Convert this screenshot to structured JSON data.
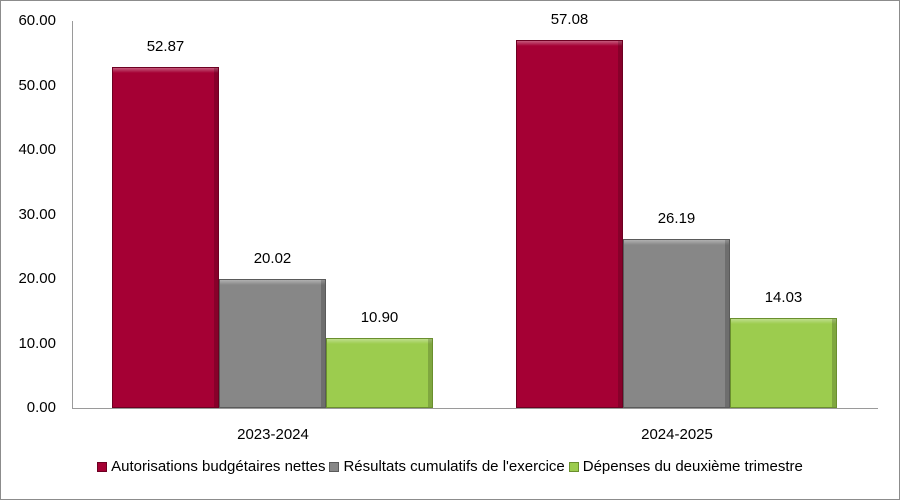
{
  "chart_data": {
    "type": "bar",
    "title": "",
    "xlabel": "",
    "ylabel": "",
    "ylim": [
      0,
      60
    ],
    "yticks": [
      "0.00",
      "10.00",
      "20.00",
      "30.00",
      "40.00",
      "50.00",
      "60.00"
    ],
    "categories": [
      "2023-2024",
      "2024-2025"
    ],
    "series": [
      {
        "name": "Autorisations budgétaires nettes",
        "color": "#a50034",
        "values": [
          52.87,
          57.08
        ],
        "labels": [
          "52.87",
          "57.08"
        ]
      },
      {
        "name": "Résultats cumulatifs de l'exercice",
        "color": "#878787",
        "values": [
          20.02,
          26.19
        ],
        "labels": [
          "20.02",
          "26.19"
        ]
      },
      {
        "name": "Dépenses du deuxième trimestre",
        "color": "#9ccc4e",
        "values": [
          10.9,
          14.03
        ],
        "labels": [
          "10.90",
          "14.03"
        ]
      }
    ],
    "legend_position": "bottom",
    "grid": false
  }
}
